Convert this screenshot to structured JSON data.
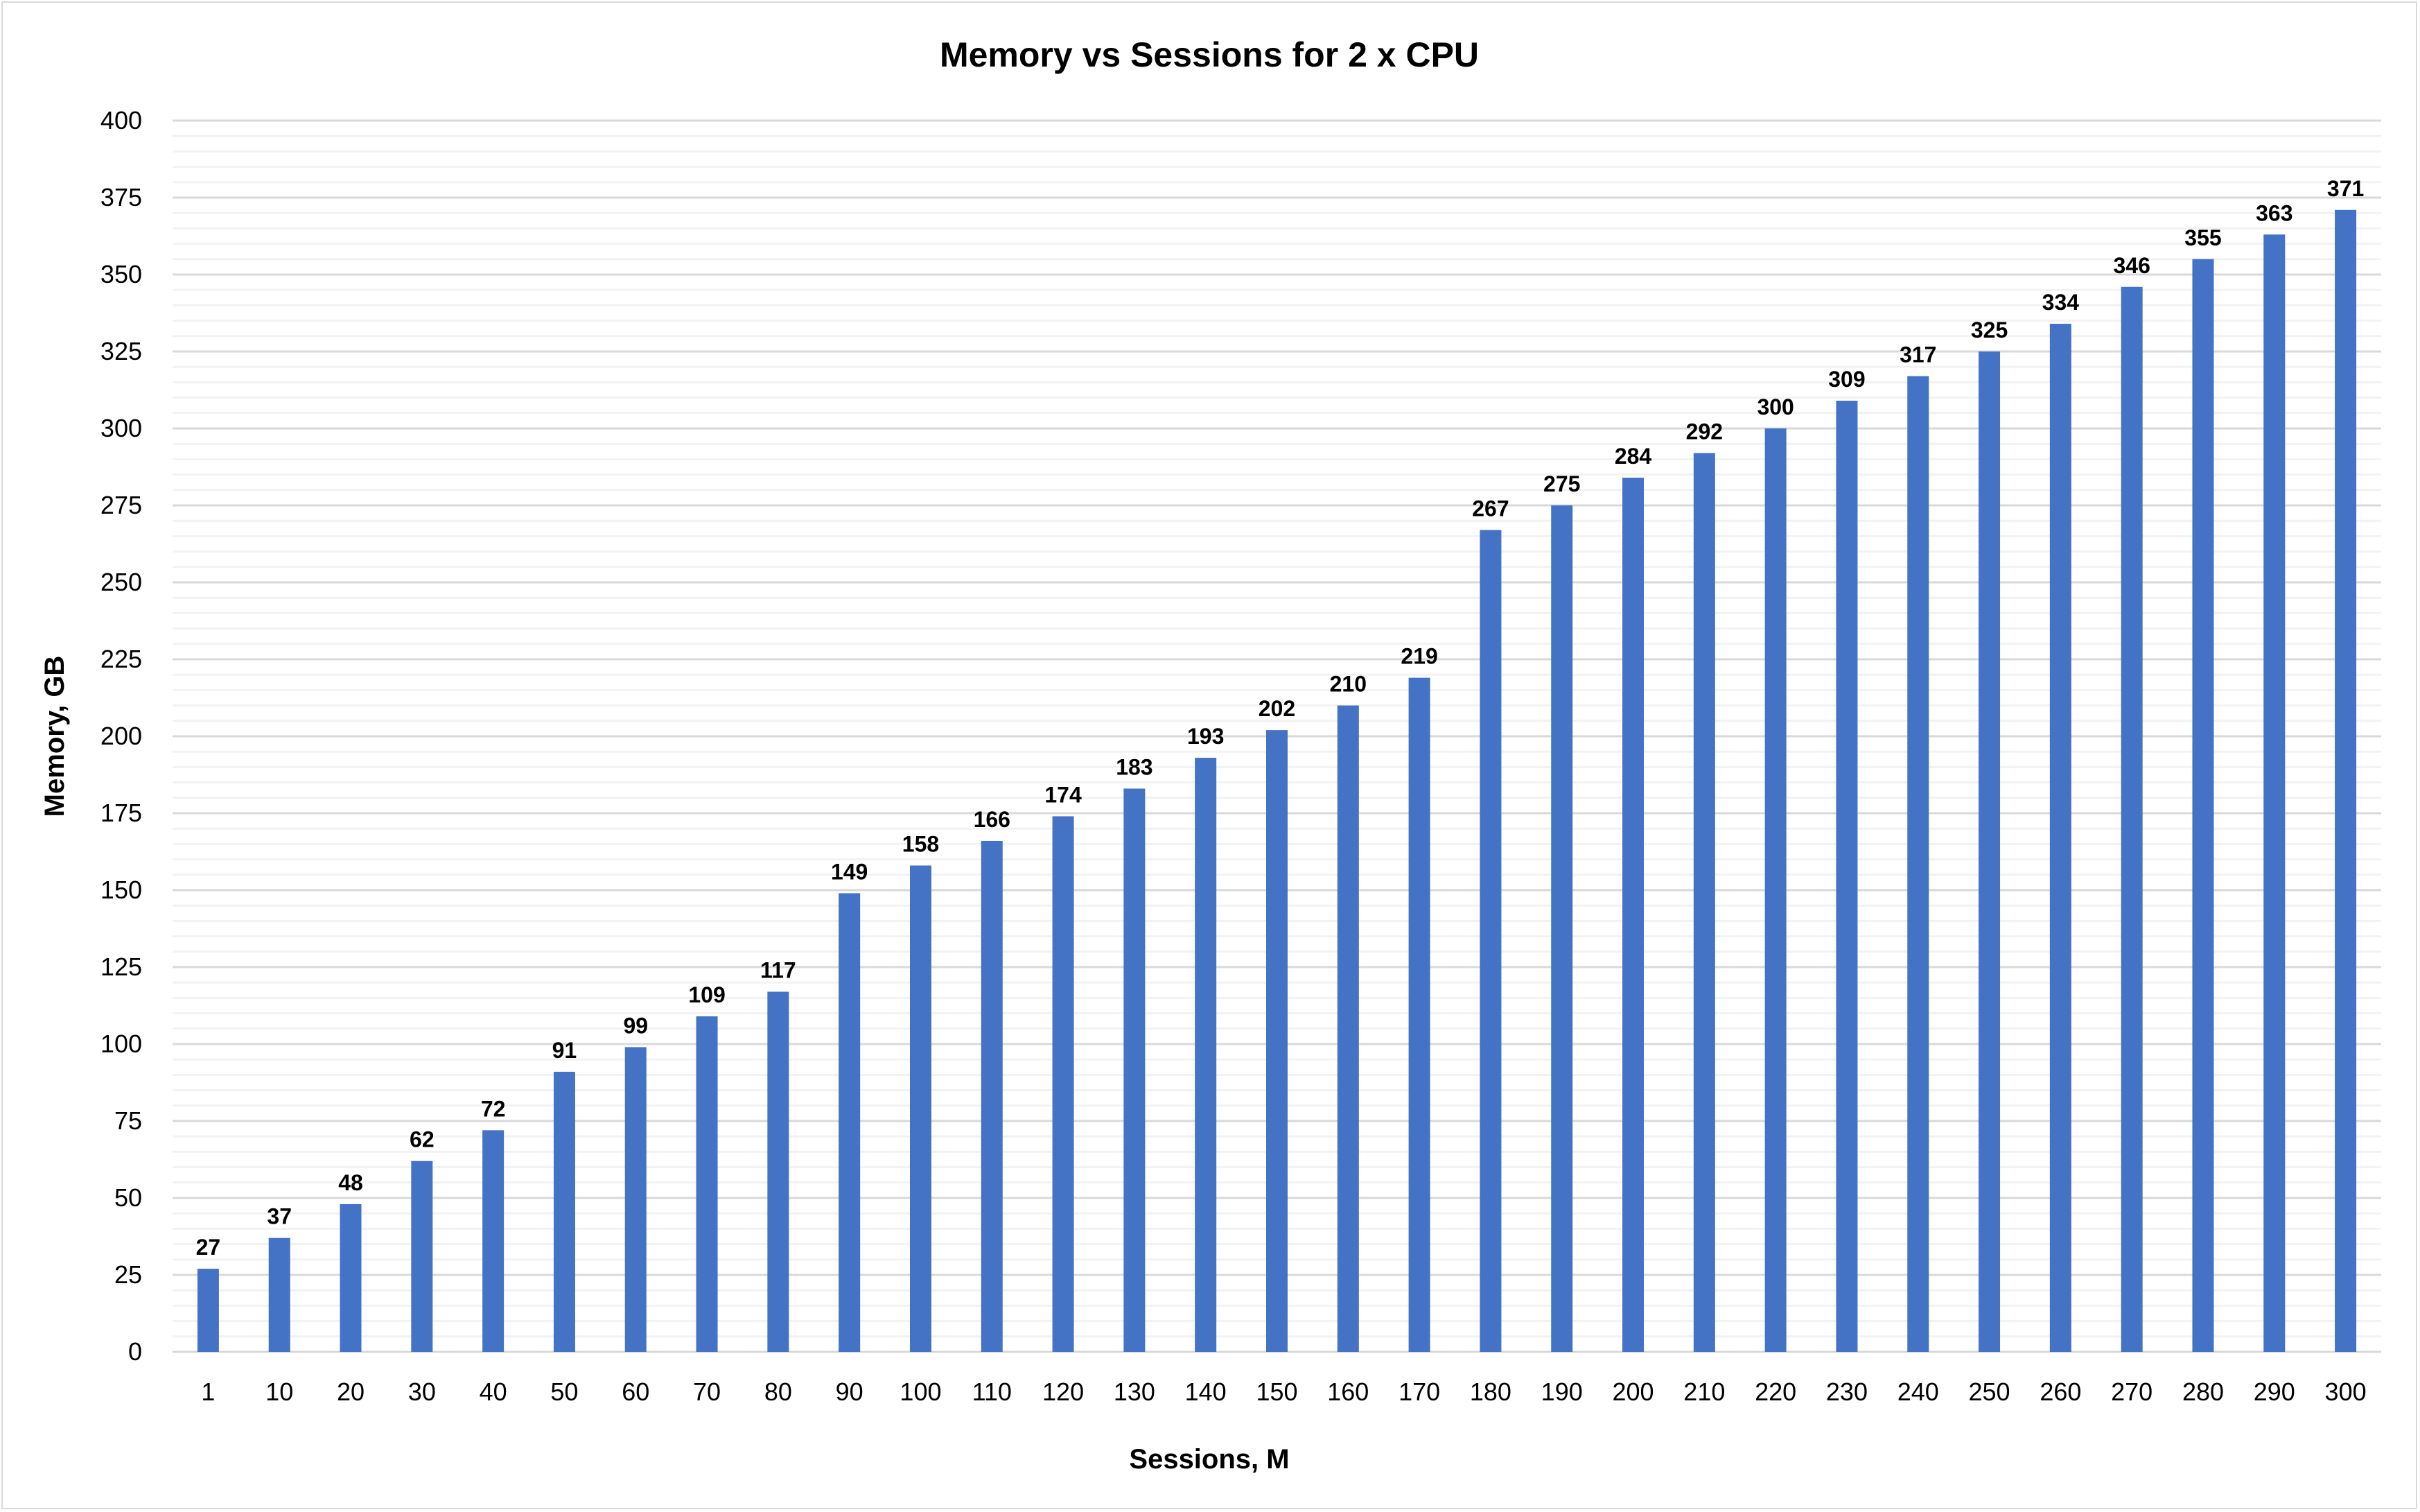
{
  "chart_data": {
    "type": "bar",
    "title": "Memory vs Sessions for 2 x CPU",
    "xlabel": "Sessions, M",
    "ylabel": "Memory, GB",
    "categories": [
      "1",
      "10",
      "20",
      "30",
      "40",
      "50",
      "60",
      "70",
      "80",
      "90",
      "100",
      "110",
      "120",
      "130",
      "140",
      "150",
      "160",
      "170",
      "180",
      "190",
      "200",
      "210",
      "220",
      "230",
      "240",
      "250",
      "260",
      "270",
      "280",
      "290",
      "300"
    ],
    "values": [
      27,
      37,
      48,
      62,
      72,
      91,
      99,
      109,
      117,
      149,
      158,
      166,
      174,
      183,
      193,
      202,
      210,
      219,
      267,
      275,
      284,
      292,
      300,
      309,
      317,
      325,
      334,
      346,
      355,
      363,
      371
    ],
    "ylim": [
      0,
      400
    ],
    "yticks": [
      0,
      25,
      50,
      75,
      100,
      125,
      150,
      175,
      200,
      225,
      250,
      275,
      300,
      325,
      350,
      375,
      400
    ],
    "minor_grid_step": 5,
    "grid": true,
    "data_labels": true,
    "legend": "none",
    "bar_color": "#4472c4"
  }
}
